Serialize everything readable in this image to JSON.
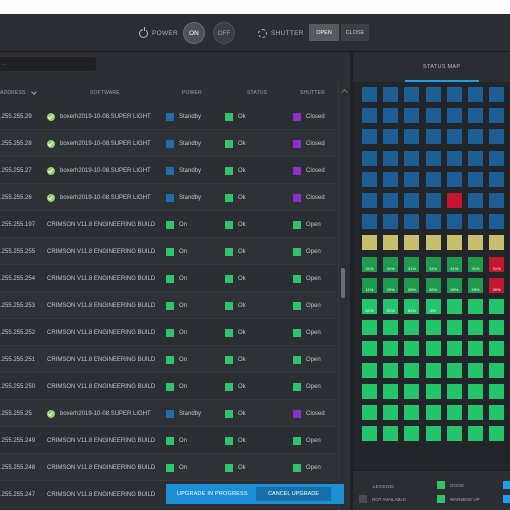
{
  "toolbar": {
    "power_label": "POWER",
    "on_label": "ON",
    "off_label": "OFF",
    "shutter_label": "SHUTTER",
    "open_label": "OPEN",
    "close_label": "CLOSE"
  },
  "table": {
    "search_value": "...",
    "columns": {
      "ip": "ADDRESS",
      "software": "SOFTWARE",
      "power": "POWER",
      "status": "STATUS",
      "shutter": "SHUTTER"
    },
    "rows": [
      {
        "ip": ".255.255.29",
        "verified": true,
        "software": "boxerh2019-10-08.SUPER LIGHT",
        "power": "Standby",
        "power_color": "#1f6fa6",
        "status": "Ok",
        "shutter": "Closed",
        "shutter_color": "#8a2fc9"
      },
      {
        "ip": ".255.255.28",
        "verified": true,
        "software": "boxerh2019-10-08.SUPER LIGHT",
        "power": "Standby",
        "power_color": "#1f6fa6",
        "status": "Ok",
        "shutter": "Closed",
        "shutter_color": "#8a2fc9"
      },
      {
        "ip": ".255.255.27",
        "verified": true,
        "software": "boxerh2019-10-08.SUPER LIGHT",
        "power": "Standby",
        "power_color": "#1f6fa6",
        "status": "Ok",
        "shutter": "Closed",
        "shutter_color": "#8a2fc9"
      },
      {
        "ip": ".255.255.26",
        "verified": true,
        "software": "boxerh2019-10-08.SUPER LIGHT",
        "power": "Standby",
        "power_color": "#1f6fa6",
        "status": "Ok",
        "shutter": "Closed",
        "shutter_color": "#8a2fc9"
      },
      {
        "ip": ".255.255.197",
        "verified": false,
        "software": "CRIMSON V11.8 ENGINEERING BUILD",
        "power": "On",
        "power_color": "#2fc46a",
        "status": "Ok",
        "shutter": "Open",
        "shutter_color": "#2fc46a"
      },
      {
        "ip": ".255.255.255",
        "verified": false,
        "software": "CRIMSON V11.8 ENGINEERING BUILD",
        "power": "On",
        "power_color": "#2fc46a",
        "status": "Ok",
        "shutter": "Open",
        "shutter_color": "#2fc46a"
      },
      {
        "ip": ".255.255.254",
        "verified": false,
        "software": "CRIMSON V11.8 ENGINEERING BUILD",
        "power": "On",
        "power_color": "#2fc46a",
        "status": "Ok",
        "shutter": "Open",
        "shutter_color": "#2fc46a"
      },
      {
        "ip": ".255.255.253",
        "verified": false,
        "software": "CRIMSON V11.8 ENGINEERING BUILD",
        "power": "On",
        "power_color": "#2fc46a",
        "status": "Ok",
        "shutter": "Open",
        "shutter_color": "#2fc46a"
      },
      {
        "ip": ".255.255.252",
        "verified": false,
        "software": "CRIMSON V11.8 ENGINEERING BUILD",
        "power": "On",
        "power_color": "#2fc46a",
        "status": "Ok",
        "shutter": "Open",
        "shutter_color": "#2fc46a"
      },
      {
        "ip": ".255.255.251",
        "verified": false,
        "software": "CRIMSON V11.8 ENGINEERING BUILD",
        "power": "On",
        "power_color": "#2fc46a",
        "status": "Ok",
        "shutter": "Open",
        "shutter_color": "#2fc46a"
      },
      {
        "ip": ".255.255.250",
        "verified": false,
        "software": "CRIMSON V11.8 ENGINEERING BUILD",
        "power": "On",
        "power_color": "#2fc46a",
        "status": "Ok",
        "shutter": "Open",
        "shutter_color": "#2fc46a"
      },
      {
        "ip": ".255.255.25",
        "verified": true,
        "software": "boxerh2019-10-08.SUPER LIGHT",
        "power": "Standby",
        "power_color": "#1f6fa6",
        "status": "Ok",
        "shutter": "Closed",
        "shutter_color": "#8a2fc9"
      },
      {
        "ip": ".255.255.249",
        "verified": false,
        "software": "CRIMSON V11.8 ENGINEERING BUILD",
        "power": "On",
        "power_color": "#2fc46a",
        "status": "Ok",
        "shutter": "Open",
        "shutter_color": "#2fc46a"
      },
      {
        "ip": ".255.255.248",
        "verified": false,
        "software": "CRIMSON V11.8 ENGINEERING BUILD",
        "power": "On",
        "power_color": "#2fc46a",
        "status": "Ok",
        "shutter": "Open",
        "shutter_color": "#2fc46a"
      },
      {
        "ip": ".255.255.247",
        "verified": false,
        "software": "CRIMSON V11.8 ENGINEERING BUILD",
        "power": "On",
        "power_color": "#2fc46a",
        "status": "",
        "shutter": "",
        "shutter_color": ""
      }
    ],
    "status_color": "#2fc46a"
  },
  "action_bar": {
    "label": "UPGRADE IN PROGRESS",
    "cancel_label": "CANCEL UPGRADE"
  },
  "status_map": {
    "title": "STATUS MAP",
    "columns": 7,
    "tiles": [
      {
        "c": "blue"
      },
      {
        "c": "blue"
      },
      {
        "c": "blue"
      },
      {
        "c": "blue"
      },
      {
        "c": "blue"
      },
      {
        "c": "blue"
      },
      {
        "c": "blue"
      },
      {
        "c": "blue"
      },
      {
        "c": "blue"
      },
      {
        "c": "blue"
      },
      {
        "c": "blue"
      },
      {
        "c": "blue"
      },
      {
        "c": "blue"
      },
      {
        "c": "blue"
      },
      {
        "c": "blue"
      },
      {
        "c": "blue"
      },
      {
        "c": "blue"
      },
      {
        "c": "blue"
      },
      {
        "c": "blue"
      },
      {
        "c": "blue"
      },
      {
        "c": "blue"
      },
      {
        "c": "blue"
      },
      {
        "c": "blue"
      },
      {
        "c": "blue"
      },
      {
        "c": "blue"
      },
      {
        "c": "blue"
      },
      {
        "c": "blue"
      },
      {
        "c": "blue"
      },
      {
        "c": "blue"
      },
      {
        "c": "blue"
      },
      {
        "c": "blue"
      },
      {
        "c": "blue"
      },
      {
        "c": "blue"
      },
      {
        "c": "blue"
      },
      {
        "c": "blue"
      },
      {
        "c": "blue"
      },
      {
        "c": "blue"
      },
      {
        "c": "blue"
      },
      {
        "c": "blue"
      },
      {
        "c": "red"
      },
      {
        "c": "blue"
      },
      {
        "c": "blue"
      },
      {
        "c": "blue"
      },
      {
        "c": "blue"
      },
      {
        "c": "blue"
      },
      {
        "c": "blue"
      },
      {
        "c": "blue"
      },
      {
        "c": "blue"
      },
      {
        "c": "blue"
      },
      {
        "c": "warm"
      },
      {
        "c": "warm"
      },
      {
        "c": "warm"
      },
      {
        "c": "warm"
      },
      {
        "c": "warm"
      },
      {
        "c": "warm"
      },
      {
        "c": "warm"
      },
      {
        "c": "green",
        "t": "31%"
      },
      {
        "c": "green",
        "t": "31%"
      },
      {
        "c": "green",
        "t": "31%"
      },
      {
        "c": "green",
        "t": "31%"
      },
      {
        "c": "green",
        "t": "31%"
      },
      {
        "c": "green",
        "t": "31%"
      },
      {
        "c": "red",
        "t": "31%"
      },
      {
        "c": "green",
        "t": "11%"
      },
      {
        "c": "green",
        "t": "26%"
      },
      {
        "c": "green",
        "t": "26%"
      },
      {
        "c": "green",
        "t": "26%"
      },
      {
        "c": "green",
        "t": "26%"
      },
      {
        "c": "green",
        "t": "26%"
      },
      {
        "c": "red",
        "t": "26%"
      },
      {
        "c": "bright",
        "t": "51%"
      },
      {
        "c": "bright",
        "t": "51%"
      },
      {
        "c": "bright",
        "t": "51%"
      },
      {
        "c": "bright",
        "t": "5%"
      },
      {
        "c": "bright"
      },
      {
        "c": "bright"
      },
      {
        "c": "bright"
      },
      {
        "c": "bright"
      },
      {
        "c": "bright"
      },
      {
        "c": "bright"
      },
      {
        "c": "bright"
      },
      {
        "c": "bright"
      },
      {
        "c": "bright"
      },
      {
        "c": "bright"
      },
      {
        "c": "bright"
      },
      {
        "c": "bright"
      },
      {
        "c": "bright"
      },
      {
        "c": "bright"
      },
      {
        "c": "bright"
      },
      {
        "c": "bright"
      },
      {
        "c": "bright"
      },
      {
        "c": "bright"
      },
      {
        "c": "bright"
      },
      {
        "c": "bright"
      },
      {
        "c": "bright"
      },
      {
        "c": "bright"
      },
      {
        "c": "bright"
      },
      {
        "c": "bright"
      },
      {
        "c": "bright"
      },
      {
        "c": "bright"
      },
      {
        "c": "bright"
      },
      {
        "c": "bright"
      },
      {
        "c": "bright"
      },
      {
        "c": "bright"
      },
      {
        "c": "bright"
      },
      {
        "c": "bright"
      },
      {
        "c": "bright"
      },
      {
        "c": "bright"
      },
      {
        "c": "bright"
      },
      {
        "c": "bright"
      },
      {
        "c": "bright"
      },
      {
        "c": "bright"
      },
      {
        "c": "bright"
      },
      {
        "c": "bright"
      },
      {
        "c": "bright"
      },
      {
        "c": "bright"
      },
      {
        "c": "bright"
      },
      {
        "c": "bright"
      },
      {
        "c": "bright"
      }
    ],
    "tile_colors": {
      "blue": "#1d5f94",
      "red": "#c4162e",
      "warm": "#c7bf6e",
      "green": "#1f9b4f",
      "bright": "#22c56a"
    }
  },
  "legend": {
    "title": "LEGEND:",
    "good": "GOOD",
    "not_available": "NOT AVAILABLE",
    "warming_up": "WARMING UP",
    "good_color": "#2fc46a",
    "not_available_color": "#4a4e55",
    "warming_up_color": "#2fc46a",
    "extra_color": "#1da0e6"
  }
}
